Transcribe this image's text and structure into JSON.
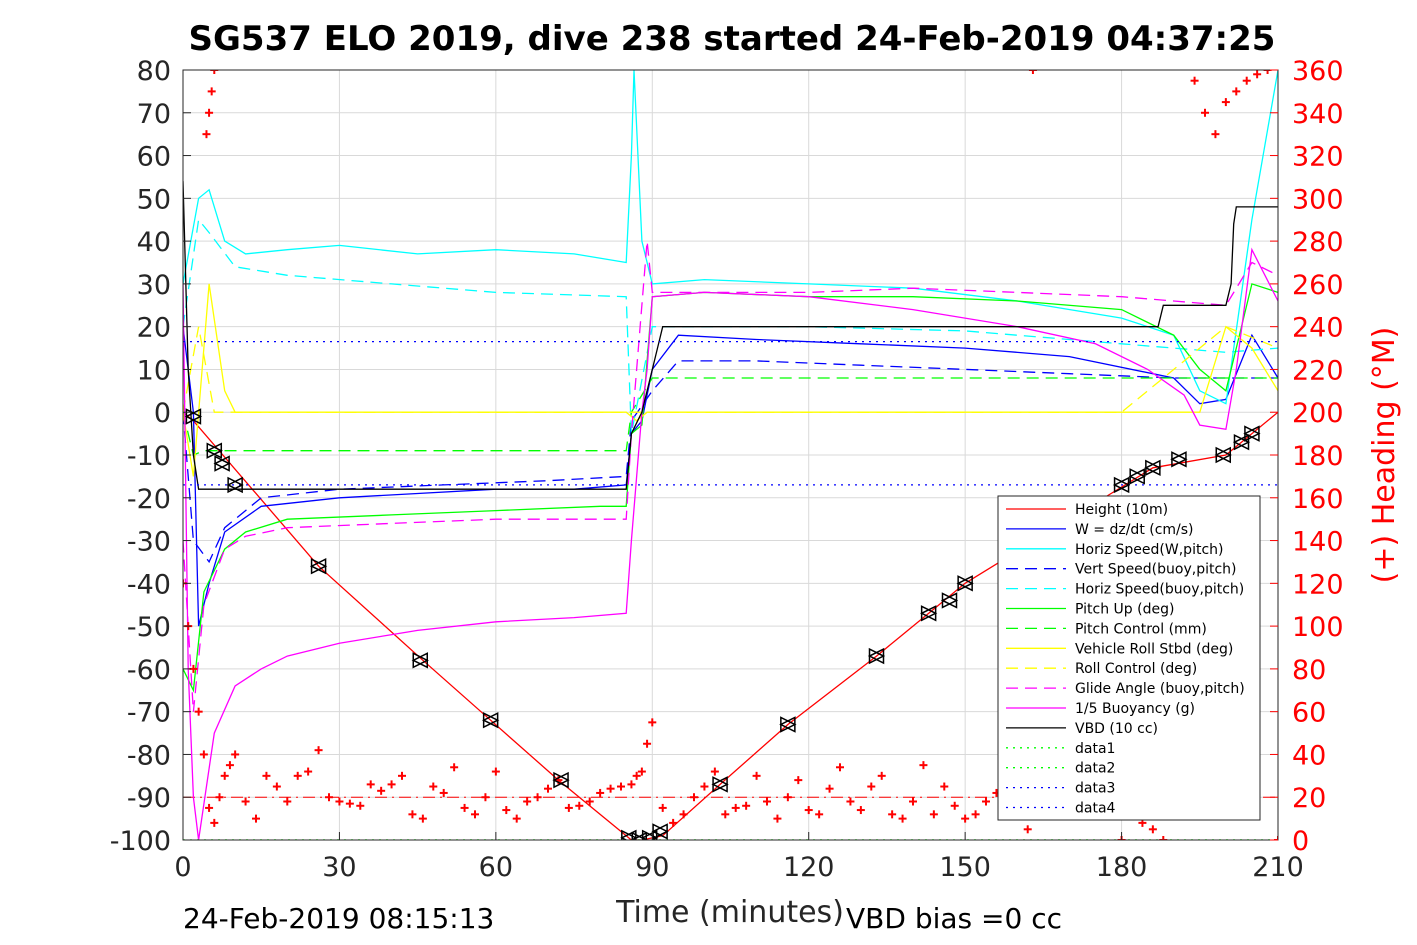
{
  "chart_data": {
    "type": "line",
    "title": "SG537 ELO 2019, dive 238 started 24-Feb-2019 04:37:25",
    "xlabel": "Time (minutes)",
    "ylabel_right": "(+) Heading (°M)",
    "xlim": [
      0,
      210
    ],
    "ylim": [
      -100,
      80
    ],
    "ylim_right": [
      0,
      360
    ],
    "xticks": [
      "0",
      "30",
      "60",
      "90",
      "120",
      "150",
      "180",
      "210"
    ],
    "yticks": [
      "80",
      "70",
      "60",
      "50",
      "40",
      "30",
      "20",
      "10",
      "0",
      "-10",
      "-20",
      "-30",
      "-40",
      "-50",
      "-60",
      "-70",
      "-80",
      "-90",
      "-100"
    ],
    "yticks_right": [
      "360",
      "340",
      "320",
      "300",
      "280",
      "260",
      "240",
      "220",
      "200",
      "180",
      "160",
      "140",
      "120",
      "100",
      "80",
      "60",
      "40",
      "20",
      "0"
    ],
    "footer_left": "24-Feb-2019 08:15:13",
    "footer_right": "VBD bias =0 cc",
    "legend_position": "lower-right",
    "grid": true,
    "colors": {
      "accent_right_axis": "#ff0000",
      "gridline": "#d9d9d9"
    },
    "series": [
      {
        "name": "Height (10m)",
        "color": "#ff0000",
        "style": "solid",
        "x": [
          0,
          2,
          26,
          46,
          59,
          72,
          86,
          88,
          92,
          103,
          116,
          133,
          144,
          150,
          178,
          186,
          200,
          210
        ],
        "y": [
          0,
          -2,
          -36,
          -58,
          -72,
          -86,
          -100,
          -100,
          -99,
          -87,
          -73,
          -57,
          -46,
          -40,
          -19,
          -13,
          -10,
          0
        ]
      },
      {
        "name": "W = dz/dt (cm/s)",
        "color": "#0000ff",
        "style": "solid",
        "x": [
          0,
          2,
          3,
          5,
          8,
          15,
          30,
          45,
          60,
          75,
          85,
          86,
          88,
          90,
          95,
          110,
          130,
          150,
          170,
          190,
          195,
          200,
          205,
          210
        ],
        "y": [
          20,
          0,
          -50,
          -40,
          -28,
          -22,
          -20,
          -19,
          -18,
          -18,
          -17,
          -5,
          -2,
          10,
          18,
          17,
          16,
          15,
          13,
          8,
          2,
          3,
          18,
          8
        ]
      },
      {
        "name": "Horiz Speed(W,pitch)",
        "color": "#00ffff",
        "style": "solid",
        "x": [
          0,
          3,
          5,
          8,
          12,
          20,
          30,
          45,
          60,
          75,
          85,
          86,
          86.5,
          88,
          90,
          100,
          120,
          140,
          160,
          180,
          190,
          195,
          200,
          205,
          210
        ],
        "y": [
          30,
          50,
          52,
          40,
          37,
          38,
          39,
          37,
          38,
          37,
          35,
          60,
          80,
          40,
          30,
          31,
          30,
          29,
          26,
          22,
          18,
          5,
          2,
          45,
          80
        ]
      },
      {
        "name": "Vert Speed(buoy,pitch)",
        "color": "#0000ff",
        "style": "dashed",
        "x": [
          0,
          2,
          5,
          8,
          15,
          30,
          50,
          70,
          85,
          86,
          90,
          95,
          110,
          130,
          150,
          170,
          190,
          200,
          210
        ],
        "y": [
          0,
          -30,
          -35,
          -27,
          -20,
          -18,
          -17,
          -16,
          -15,
          -2,
          5,
          12,
          12,
          11,
          10,
          9,
          8,
          8,
          8
        ]
      },
      {
        "name": "Horiz Speed(buoy,pitch)",
        "color": "#00ffff",
        "style": "dashed",
        "x": [
          0,
          3,
          5,
          10,
          20,
          40,
          60,
          85,
          86,
          90,
          95,
          120,
          150,
          180,
          190,
          200,
          210
        ],
        "y": [
          20,
          45,
          42,
          34,
          32,
          30,
          28,
          27,
          -5,
          20,
          20,
          20,
          19,
          16,
          15,
          14,
          15
        ]
      },
      {
        "name": "Pitch Up (deg)",
        "color": "#00ff00",
        "style": "solid",
        "x": [
          0,
          2,
          4,
          8,
          12,
          20,
          40,
          60,
          80,
          85,
          86,
          88,
          90,
          100,
          120,
          140,
          160,
          180,
          190,
          195,
          200,
          205,
          210
        ],
        "y": [
          -60,
          -65,
          -42,
          -32,
          -28,
          -25,
          -24,
          -23,
          -22,
          -22,
          -5,
          -3,
          27,
          28,
          27,
          27,
          26,
          24,
          18,
          10,
          5,
          30,
          28
        ]
      },
      {
        "name": "Pitch Control (mm)",
        "color": "#00ff00",
        "style": "dashed",
        "x": [
          0,
          2,
          4,
          8,
          85,
          86,
          90,
          210
        ],
        "y": [
          0,
          -10,
          -9,
          -9,
          -9,
          0,
          8,
          8
        ]
      },
      {
        "name": "Vehicle Roll Stbd (deg)",
        "color": "#ffff00",
        "style": "solid",
        "x": [
          0,
          2,
          5,
          8,
          10,
          20,
          40,
          60,
          85,
          87,
          89,
          90,
          100,
          120,
          150,
          180,
          195,
          200,
          205,
          210
        ],
        "y": [
          0,
          -15,
          30,
          5,
          0,
          0,
          0,
          0,
          0,
          -2,
          0,
          0,
          0,
          0,
          0,
          0,
          0,
          20,
          15,
          5
        ]
      },
      {
        "name": "Roll Control (deg)",
        "color": "#ffff00",
        "style": "dashed",
        "x": [
          0,
          3,
          6,
          10,
          60,
          86,
          90,
          150,
          180,
          200,
          210
        ],
        "y": [
          0,
          20,
          0,
          0,
          0,
          0,
          0,
          0,
          0,
          20,
          15
        ]
      },
      {
        "name": "Glide Angle (buoy,pitch)",
        "color": "#ff00ff",
        "style": "dashed",
        "x": [
          0,
          2,
          4,
          8,
          12,
          20,
          40,
          60,
          85,
          86,
          89,
          90,
          100,
          120,
          140,
          160,
          180,
          190,
          200,
          205,
          210
        ],
        "y": [
          -30,
          -70,
          -45,
          -32,
          -29,
          -27,
          -26,
          -25,
          -25,
          -5,
          40,
          28,
          28,
          28,
          29,
          28,
          27,
          26,
          25,
          35,
          32
        ]
      },
      {
        "name": "1/5 Buoyancy (g)",
        "color": "#ff00ff",
        "style": "solid",
        "x": [
          0,
          1,
          2,
          3,
          6,
          10,
          15,
          20,
          30,
          45,
          60,
          75,
          85,
          86,
          88,
          89,
          90,
          100,
          120,
          140,
          160,
          175,
          185,
          192,
          195,
          200,
          202,
          205,
          210
        ],
        "y": [
          30,
          -60,
          -90,
          -100,
          -75,
          -64,
          -60,
          -57,
          -54,
          -51,
          -49,
          -48,
          -47,
          -30,
          0,
          10,
          27,
          28,
          27,
          24,
          20,
          16,
          10,
          4,
          -3,
          -4,
          10,
          38,
          26
        ]
      },
      {
        "name": "VBD (10 cc)",
        "color": "#000000",
        "style": "solid",
        "x": [
          0,
          1,
          2,
          3,
          85,
          86,
          88,
          91,
          92,
          155,
          156,
          187,
          188,
          200,
          201,
          201.5,
          202,
          210
        ],
        "y": [
          54,
          10,
          -10,
          -18,
          -18,
          -5,
          0,
          15,
          20,
          20,
          20,
          20,
          25,
          25,
          30,
          44,
          48,
          48
        ]
      },
      {
        "name": "data1",
        "color": "#00ff00",
        "style": "dotted",
        "x": [
          0,
          210
        ],
        "y": [
          -100,
          -100
        ]
      },
      {
        "name": "data2",
        "color": "#00ff00",
        "style": "dotted",
        "x": [
          0,
          210
        ],
        "y": [
          -100,
          -100
        ]
      },
      {
        "name": "data3",
        "color": "#0000ff",
        "style": "dotted",
        "x": [
          0,
          210
        ],
        "y": [
          16.5,
          16.5
        ]
      },
      {
        "name": "data4",
        "color": "#0000ff",
        "style": "dotted",
        "x": [
          0,
          210
        ],
        "y": [
          -17,
          -17
        ]
      }
    ],
    "apogee_reference_line": {
      "color": "#ff0000",
      "style": "dashdot",
      "y": -90
    },
    "heading": {
      "axis": "right",
      "color": "#ff0000",
      "marker": "+",
      "x": [
        0,
        1,
        2,
        3,
        4,
        5,
        6,
        7,
        8,
        9,
        10,
        12,
        14,
        16,
        18,
        20,
        22,
        24,
        26,
        28,
        30,
        32,
        34,
        36,
        38,
        40,
        42,
        44,
        46,
        48,
        50,
        52,
        54,
        56,
        58,
        60,
        62,
        64,
        66,
        68,
        70,
        72,
        74,
        76,
        78,
        80,
        82,
        84,
        86,
        87,
        88,
        89,
        90,
        92,
        94,
        96,
        98,
        100,
        102,
        104,
        106,
        108,
        110,
        112,
        114,
        116,
        118,
        120,
        122,
        124,
        126,
        128,
        130,
        132,
        134,
        136,
        138,
        140,
        142,
        144,
        146,
        148,
        150,
        152,
        154,
        156
      ],
      "y": [
        120,
        100,
        80,
        60,
        40,
        15,
        8,
        20,
        30,
        35,
        40,
        18,
        10,
        30,
        25,
        18,
        30,
        32,
        42,
        20,
        18,
        17,
        16,
        26,
        23,
        26,
        30,
        12,
        10,
        25,
        22,
        34,
        15,
        12,
        20,
        32,
        14,
        10,
        18,
        20,
        24,
        28,
        15,
        16,
        18,
        22,
        24,
        25,
        26,
        30,
        32,
        45,
        55,
        15,
        8,
        12,
        20,
        25,
        32,
        12,
        15,
        16,
        30,
        18,
        10,
        20,
        28,
        14,
        12,
        24,
        34,
        18,
        14,
        25,
        30,
        12,
        10,
        18,
        35,
        12,
        25,
        16,
        10,
        12,
        18,
        22
      ],
      "x2": [
        4.5,
        5,
        5.5,
        6
      ],
      "y2": [
        330,
        340,
        350,
        360
      ],
      "x3": [
        162,
        163,
        180,
        182,
        184,
        186,
        188,
        190,
        192,
        194,
        196,
        198,
        200,
        202,
        204,
        206,
        208,
        210
      ],
      "y3": [
        5,
        360,
        0,
        15,
        8,
        5,
        0,
        12,
        20,
        355,
        340,
        330,
        345,
        350,
        355,
        358,
        360,
        0
      ]
    },
    "markers": {
      "color": "#000000",
      "descent_triangle": "pointing-left",
      "ascent_triangle": "pointing-right",
      "points": [
        {
          "x": 2,
          "y": -1
        },
        {
          "x": 6,
          "y": -9
        },
        {
          "x": 7.5,
          "y": -12
        },
        {
          "x": 10,
          "y": -17
        },
        {
          "x": 26,
          "y": -36
        },
        {
          "x": 45.5,
          "y": -58
        },
        {
          "x": 59,
          "y": -72
        },
        {
          "x": 72.5,
          "y": -86
        },
        {
          "x": 85.5,
          "y": -99.5
        },
        {
          "x": 87.5,
          "y": -100
        },
        {
          "x": 89.5,
          "y": -99.5
        },
        {
          "x": 91.5,
          "y": -98
        },
        {
          "x": 103,
          "y": -87
        },
        {
          "x": 116,
          "y": -73
        },
        {
          "x": 133,
          "y": -57
        },
        {
          "x": 143,
          "y": -47
        },
        {
          "x": 147,
          "y": -44
        },
        {
          "x": 150,
          "y": -40
        },
        {
          "x": 180,
          "y": -17
        },
        {
          "x": 183,
          "y": -15
        },
        {
          "x": 186,
          "y": -13
        },
        {
          "x": 191,
          "y": -11
        },
        {
          "x": 199.5,
          "y": -10
        },
        {
          "x": 203,
          "y": -7
        },
        {
          "x": 205,
          "y": -5
        }
      ]
    }
  }
}
